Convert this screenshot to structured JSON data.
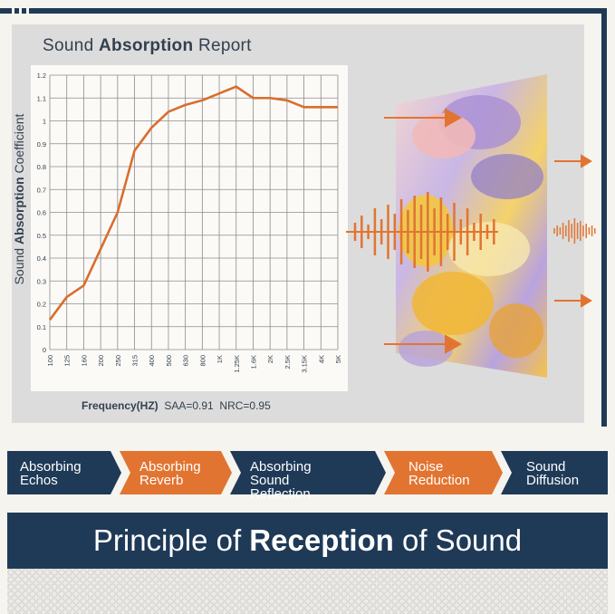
{
  "report": {
    "title_pre": "Sound ",
    "title_bold": "Absorption",
    "title_post": " Report",
    "ylabel_pre": "Sound ",
    "ylabel_bold": "Absorption",
    "ylabel_post": " Coefficient",
    "freq_label": "Frequency(HZ)",
    "saa": "SAA=0.91",
    "nrc": "NRC=0.95"
  },
  "chart_data": {
    "type": "line",
    "title": "Sound Absorption Report",
    "xlabel": "Frequency(HZ)",
    "ylabel": "Sound Absorption Coefficient",
    "categories": [
      "100",
      "125",
      "160",
      "200",
      "250",
      "315",
      "400",
      "500",
      "630",
      "800",
      "1K",
      "1.25K",
      "1.6K",
      "2K",
      "2.5K",
      "3.15K",
      "4K",
      "5K"
    ],
    "y_ticks": [
      "0",
      "0.1",
      "0.2",
      "0.3",
      "0.4",
      "0.5",
      "0.6",
      "0.7",
      "0.8",
      "0.9",
      "1",
      "1.1",
      "1.2"
    ],
    "ylim": [
      0,
      1.2
    ],
    "grid": true,
    "series": [
      {
        "values": [
          0.13,
          0.23,
          0.28,
          0.44,
          0.6,
          0.87,
          0.97,
          1.04,
          1.07,
          1.09,
          1.12,
          1.15,
          1.1,
          1.1,
          1.09,
          1.06,
          1.06,
          1.06
        ],
        "color": "#d96e2c"
      }
    ]
  },
  "steps": [
    {
      "line1": "Absorbing",
      "line2": "Echos",
      "color": "#1f3a57"
    },
    {
      "line1": "Absorbing",
      "line2": "Reverb",
      "color": "#e27431"
    },
    {
      "line1": "Absorbing",
      "line2": "Sound Reflection",
      "color": "#1f3a57"
    },
    {
      "line1": "Noise",
      "line2": "Reduction",
      "color": "#e27431"
    },
    {
      "line1": "Sound",
      "line2": "Diffusion",
      "color": "#1f3a57"
    }
  ],
  "banner": {
    "pre": "Principle of ",
    "bold": "Reception",
    "post": " of Sound"
  },
  "colors": {
    "navy": "#1f3a57",
    "orange": "#e27431",
    "line": "#d96e2c"
  }
}
